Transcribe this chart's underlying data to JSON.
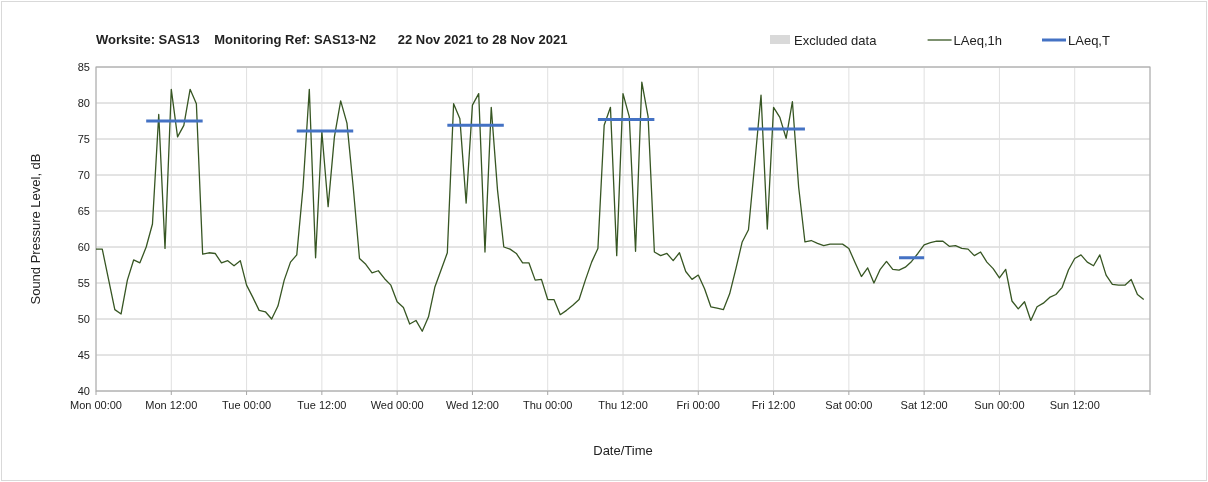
{
  "chart_data": {
    "type": "line",
    "title": "Worksite: SAS13    Monitoring Ref: SAS13-N2      22 Nov 2021 to 28 Nov 2021",
    "xlabel": "Date/Time",
    "ylabel": "Sound Pressure Level, dB",
    "x": [
      "2021-11-22T00:00",
      "2021-11-22T01:00",
      "2021-11-22T02:00",
      "2021-11-22T03:00",
      "2021-11-22T04:00",
      "2021-11-22T05:00",
      "2021-11-22T06:00",
      "2021-11-22T07:00",
      "2021-11-22T08:00",
      "2021-11-22T09:00",
      "2021-11-22T10:00",
      "2021-11-22T11:00",
      "2021-11-22T12:00",
      "2021-11-22T13:00",
      "2021-11-22T14:00",
      "2021-11-22T15:00",
      "2021-11-22T16:00",
      "2021-11-22T17:00",
      "2021-11-22T18:00",
      "2021-11-22T19:00",
      "2021-11-22T20:00",
      "2021-11-22T21:00",
      "2021-11-22T22:00",
      "2021-11-22T23:00",
      "2021-11-23T00:00",
      "2021-11-23T01:00",
      "2021-11-23T02:00",
      "2021-11-23T03:00",
      "2021-11-23T04:00",
      "2021-11-23T05:00",
      "2021-11-23T06:00",
      "2021-11-23T07:00",
      "2021-11-23T08:00",
      "2021-11-23T09:00",
      "2021-11-23T10:00",
      "2021-11-23T11:00",
      "2021-11-23T12:00",
      "2021-11-23T13:00",
      "2021-11-23T14:00",
      "2021-11-23T15:00",
      "2021-11-23T16:00",
      "2021-11-23T17:00",
      "2021-11-23T18:00",
      "2021-11-23T19:00",
      "2021-11-23T20:00",
      "2021-11-23T21:00",
      "2021-11-23T22:00",
      "2021-11-23T23:00",
      "2021-11-24T00:00",
      "2021-11-24T01:00",
      "2021-11-24T02:00",
      "2021-11-24T03:00",
      "2021-11-24T04:00",
      "2021-11-24T05:00",
      "2021-11-24T06:00",
      "2021-11-24T07:00",
      "2021-11-24T08:00",
      "2021-11-24T09:00",
      "2021-11-24T10:00",
      "2021-11-24T11:00",
      "2021-11-24T12:00",
      "2021-11-24T13:00",
      "2021-11-24T14:00",
      "2021-11-24T15:00",
      "2021-11-24T16:00",
      "2021-11-24T17:00",
      "2021-11-24T18:00",
      "2021-11-24T19:00",
      "2021-11-24T20:00",
      "2021-11-24T21:00",
      "2021-11-24T22:00",
      "2021-11-24T23:00",
      "2021-11-25T00:00",
      "2021-11-25T01:00",
      "2021-11-25T02:00",
      "2021-11-25T03:00",
      "2021-11-25T04:00",
      "2021-11-25T05:00",
      "2021-11-25T06:00",
      "2021-11-25T07:00",
      "2021-11-25T08:00",
      "2021-11-25T09:00",
      "2021-11-25T10:00",
      "2021-11-25T11:00",
      "2021-11-25T12:00",
      "2021-11-25T13:00",
      "2021-11-25T14:00",
      "2021-11-25T15:00",
      "2021-11-25T16:00",
      "2021-11-25T17:00",
      "2021-11-25T18:00",
      "2021-11-25T19:00",
      "2021-11-25T20:00",
      "2021-11-25T21:00",
      "2021-11-25T22:00",
      "2021-11-25T23:00",
      "2021-11-26T00:00",
      "2021-11-26T01:00",
      "2021-11-26T02:00",
      "2021-11-26T03:00",
      "2021-11-26T04:00",
      "2021-11-26T05:00",
      "2021-11-26T06:00",
      "2021-11-26T07:00",
      "2021-11-26T08:00",
      "2021-11-26T09:00",
      "2021-11-26T10:00",
      "2021-11-26T11:00",
      "2021-11-26T12:00",
      "2021-11-26T13:00",
      "2021-11-26T14:00",
      "2021-11-26T15:00",
      "2021-11-26T16:00",
      "2021-11-26T17:00",
      "2021-11-26T18:00",
      "2021-11-26T19:00",
      "2021-11-26T20:00",
      "2021-11-26T21:00",
      "2021-11-26T22:00",
      "2021-11-26T23:00",
      "2021-11-27T00:00",
      "2021-11-27T01:00",
      "2021-11-27T02:00",
      "2021-11-27T03:00",
      "2021-11-27T04:00",
      "2021-11-27T05:00",
      "2021-11-27T06:00",
      "2021-11-27T07:00",
      "2021-11-27T08:00",
      "2021-11-27T09:00",
      "2021-11-27T10:00",
      "2021-11-27T11:00",
      "2021-11-27T12:00",
      "2021-11-27T13:00",
      "2021-11-27T14:00",
      "2021-11-27T15:00",
      "2021-11-27T16:00",
      "2021-11-27T17:00",
      "2021-11-27T18:00",
      "2021-11-27T19:00",
      "2021-11-27T20:00",
      "2021-11-27T21:00",
      "2021-11-27T22:00",
      "2021-11-27T23:00",
      "2021-11-28T00:00",
      "2021-11-28T01:00",
      "2021-11-28T02:00",
      "2021-11-28T03:00",
      "2021-11-28T04:00",
      "2021-11-28T05:00",
      "2021-11-28T06:00",
      "2021-11-28T07:00",
      "2021-11-28T08:00",
      "2021-11-28T09:00",
      "2021-11-28T10:00",
      "2021-11-28T11:00",
      "2021-11-28T12:00",
      "2021-11-28T13:00",
      "2021-11-28T14:00",
      "2021-11-28T15:00",
      "2021-11-28T16:00",
      "2021-11-28T17:00",
      "2021-11-28T18:00",
      "2021-11-28T19:00",
      "2021-11-28T20:00",
      "2021-11-28T21:00",
      "2021-11-28T22:00",
      "2021-11-28T23:00"
    ],
    "series": [
      {
        "name": "Excluded data",
        "type": "area",
        "color": "#d9d9d9",
        "values": [
          null,
          null,
          null,
          null,
          null,
          null,
          null,
          null,
          null,
          null,
          null,
          null,
          null,
          null,
          null,
          null,
          null,
          null,
          null,
          null,
          null,
          null,
          null,
          null,
          null,
          null,
          null,
          null,
          null,
          null,
          null,
          null,
          null,
          null,
          null,
          null,
          null,
          null,
          null,
          null,
          null,
          null,
          null,
          null,
          null,
          null,
          null,
          null,
          null,
          null,
          null,
          null,
          null,
          null,
          null,
          null,
          null,
          null,
          null,
          null,
          null,
          null,
          null,
          null,
          null,
          null,
          null,
          null,
          null,
          null,
          null,
          null,
          null,
          null,
          null,
          null,
          null,
          null,
          null,
          null,
          null,
          null,
          null,
          null,
          null,
          null,
          null,
          null,
          null,
          null,
          null,
          null,
          null,
          null,
          null,
          null,
          null,
          null,
          null,
          null,
          null,
          null,
          null,
          null,
          null,
          null,
          null,
          null,
          null,
          null,
          null,
          null,
          null,
          null,
          null,
          null,
          null,
          null,
          null,
          null,
          null,
          null,
          null,
          null,
          null,
          null,
          null,
          null,
          null,
          null,
          null,
          null,
          null,
          null,
          null,
          null,
          null,
          null,
          null,
          null,
          null,
          null,
          null,
          null,
          null,
          null,
          null,
          null,
          null,
          null,
          null,
          null,
          null,
          null,
          null,
          null,
          null,
          null,
          null,
          null,
          null,
          null,
          null,
          null,
          null,
          null,
          null,
          null
        ]
      },
      {
        "name": "LAeq,1h",
        "color": "#375623",
        "values": [
          59.7,
          59.7,
          55.5,
          51.3,
          50.7,
          55.4,
          58.2,
          57.8,
          60,
          63.2,
          78.4,
          59.8,
          81.9,
          75.3,
          76.9,
          81.9,
          79.9,
          59,
          59.2,
          59.1,
          57.8,
          58.1,
          57.4,
          58.1,
          54.7,
          53,
          51.2,
          51,
          50,
          51.8,
          55.4,
          57.9,
          58.9,
          68.3,
          81.9,
          58.5,
          76,
          65.6,
          75.3,
          80.3,
          77.2,
          68.3,
          58.4,
          57.6,
          56.4,
          56.7,
          55.6,
          54.7,
          52.4,
          51.6,
          49.3,
          49.8,
          48.3,
          50.3,
          54.4,
          56.8,
          59.2,
          79.9,
          77.8,
          66.1,
          79.7,
          81.3,
          59.3,
          79.4,
          67.9,
          60,
          59.7,
          59.1,
          57.8,
          57.8,
          55.4,
          55.5,
          52.7,
          52.7,
          50.6,
          51.2,
          51.9,
          52.7,
          55.4,
          57.9,
          59.8,
          76.9,
          79.4,
          58.8,
          81.3,
          78.1,
          59.4,
          82.9,
          78.1,
          59.3,
          58.8,
          59.1,
          58.1,
          59.2,
          56.6,
          55.5,
          56.1,
          54.2,
          51.7,
          51.5,
          51.3,
          53.5,
          57,
          60.7,
          62.4,
          71.6,
          81.1,
          62.5,
          79.4,
          78,
          75.1,
          80.2,
          68.3,
          60.7,
          60.9,
          60.5,
          60.2,
          60.4,
          60.4,
          60.4,
          59.8,
          57.8,
          55.9,
          57.1,
          55,
          56.9,
          58,
          56.9,
          56.8,
          57.2,
          58,
          59.1,
          60.3,
          60.6,
          60.8,
          60.8,
          60.1,
          60.2,
          59.8,
          59.7,
          58.8,
          59.3,
          57.9,
          57,
          55.7,
          56.9,
          52.5,
          51.4,
          52.4,
          49.8,
          51.7,
          52.2,
          53,
          53.4,
          54.4,
          56.8,
          58.4,
          58.9,
          57.9,
          57.4,
          58.9,
          56.1,
          54.8,
          54.7,
          54.7,
          55.5,
          53.4,
          52.7
        ]
      },
      {
        "name": "LAeq,T",
        "color": "#4472c4",
        "x": [
          "2021-11-22T08:00",
          "2021-11-22T17:00",
          "2021-11-22T17:30",
          "2021-11-23T08:00",
          "2021-11-23T17:00",
          "2021-11-23T17:30",
          "2021-11-24T08:00",
          "2021-11-24T17:00",
          "2021-11-24T17:30",
          "2021-11-25T08:00",
          "2021-11-25T17:00",
          "2021-11-25T17:30",
          "2021-11-26T08:00",
          "2021-11-26T17:00",
          "2021-11-26T17:30",
          "2021-11-27T08:00",
          "2021-11-27T12:00"
        ],
        "values": [
          77.5,
          77.5,
          null,
          76.1,
          76.1,
          null,
          76.9,
          76.9,
          null,
          77.7,
          77.7,
          null,
          76.4,
          76.4,
          null,
          58.5,
          58.5
        ]
      }
    ],
    "xlim": [
      "2021-11-22T00:00",
      "2021-11-29T00:00"
    ],
    "xticks": [
      {
        "value": "2021-11-22T00:00",
        "label": "Mon 00:00"
      },
      {
        "value": "2021-11-22T12:00",
        "label": "Mon 12:00"
      },
      {
        "value": "2021-11-23T00:00",
        "label": "Tue 00:00"
      },
      {
        "value": "2021-11-23T12:00",
        "label": "Tue 12:00"
      },
      {
        "value": "2021-11-24T00:00",
        "label": "Wed 00:00"
      },
      {
        "value": "2021-11-24T12:00",
        "label": "Wed 12:00"
      },
      {
        "value": "2021-11-25T00:00",
        "label": "Thu 00:00"
      },
      {
        "value": "2021-11-25T12:00",
        "label": "Thu 12:00"
      },
      {
        "value": "2021-11-26T00:00",
        "label": "Fri 00:00"
      },
      {
        "value": "2021-11-26T12:00",
        "label": "Fri 12:00"
      },
      {
        "value": "2021-11-27T00:00",
        "label": "Sat 00:00"
      },
      {
        "value": "2021-11-27T12:00",
        "label": "Sat 12:00"
      },
      {
        "value": "2021-11-28T00:00",
        "label": "Sun 00:00"
      },
      {
        "value": "2021-11-28T12:00",
        "label": "Sun 12:00"
      },
      {
        "value": "2021-11-29T00:00",
        "label": null
      }
    ],
    "ylim": [
      40,
      85
    ],
    "yticks": [
      40,
      45,
      50,
      55,
      60,
      65,
      70,
      75,
      80,
      85
    ],
    "grid": true,
    "legend": "top right",
    "marker": "none",
    "line_style": "solid"
  }
}
